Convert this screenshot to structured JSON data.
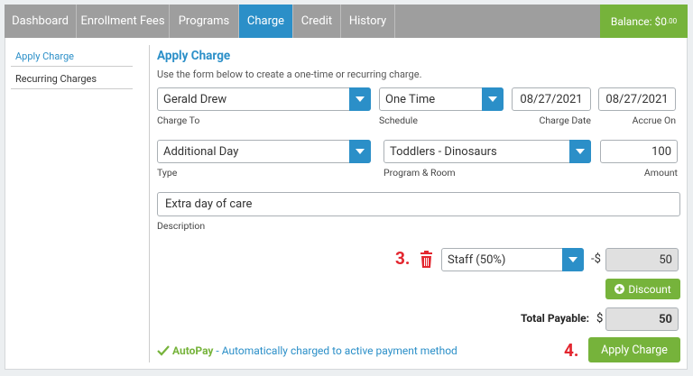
{
  "nav": {
    "tabs": [
      {
        "label": "Dashboard",
        "active": false
      },
      {
        "label": "Enrollment Fees",
        "active": false
      },
      {
        "label": "Programs",
        "active": false
      },
      {
        "label": "Charge",
        "active": true
      },
      {
        "label": "Credit",
        "active": false
      },
      {
        "label": "History",
        "active": false
      }
    ],
    "balance": {
      "label": "Balance:",
      "amount": "$0",
      "cents": ".00"
    }
  },
  "sidebar": {
    "items": [
      "Apply Charge",
      "Recurring Charges"
    ]
  },
  "form": {
    "title": "Apply Charge",
    "instructions": "Use the form below to create a one-time or recurring charge.",
    "charge_to": {
      "value": "Gerald Drew",
      "label": "Charge To"
    },
    "schedule": {
      "value": "One Time",
      "label": "Schedule"
    },
    "charge_date": {
      "value": "08/27/2021",
      "label": "Charge Date"
    },
    "accrue_on": {
      "value": "08/27/2021",
      "label": "Accrue On"
    },
    "type": {
      "value": "Additional Day",
      "label": "Type"
    },
    "program_room": {
      "value": "Toddlers - Dinosaurs",
      "label": "Program & Room"
    },
    "amount": {
      "value": "100",
      "label": "Amount"
    },
    "description": {
      "value": "Extra day of care",
      "label": "Description"
    },
    "discount": {
      "step": "3.",
      "value": "Staff (50%)",
      "sign": "-$",
      "amount": "50",
      "button": "Discount"
    },
    "total": {
      "label": "Total Payable:",
      "currency": "$",
      "amount": "50"
    },
    "autopay": {
      "label": "AutoPay",
      "text": " - Automatically charged to active payment method"
    },
    "submit": {
      "step": "4.",
      "button": "Apply Charge"
    }
  }
}
